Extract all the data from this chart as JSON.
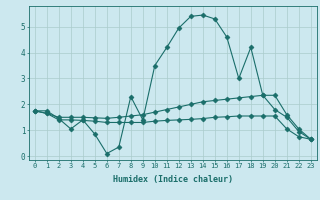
{
  "xlabel": "Humidex (Indice chaleur)",
  "bg_color": "#cce8ef",
  "grid_color": "#aacccc",
  "line_color": "#1a6e6a",
  "xlim": [
    -0.5,
    23.5
  ],
  "ylim": [
    -0.15,
    5.8
  ],
  "xticks": [
    0,
    1,
    2,
    3,
    4,
    5,
    6,
    7,
    8,
    9,
    10,
    11,
    12,
    13,
    14,
    15,
    16,
    17,
    18,
    19,
    20,
    21,
    22,
    23
  ],
  "yticks": [
    0,
    1,
    2,
    3,
    4,
    5
  ],
  "series": [
    {
      "x": [
        0,
        1,
        2,
        3,
        4,
        5,
        6,
        7,
        8,
        9,
        10,
        11,
        12,
        13,
        14,
        15,
        16,
        17,
        18,
        19,
        20,
        21,
        22,
        23
      ],
      "y": [
        1.75,
        1.75,
        1.45,
        1.05,
        1.4,
        0.85,
        0.1,
        0.35,
        2.3,
        1.4,
        3.5,
        4.2,
        4.95,
        5.4,
        5.45,
        5.3,
        4.6,
        3.0,
        4.2,
        2.35,
        1.8,
        1.5,
        0.95,
        0.65
      ],
      "marker": "D",
      "markersize": 2.5
    },
    {
      "x": [
        0,
        1,
        2,
        3,
        4,
        5,
        6,
        7,
        8,
        9,
        10,
        11,
        12,
        13,
        14,
        15,
        16,
        17,
        18,
        19,
        20,
        21,
        22,
        23
      ],
      "y": [
        1.75,
        1.65,
        1.5,
        1.5,
        1.5,
        1.48,
        1.46,
        1.5,
        1.55,
        1.6,
        1.7,
        1.8,
        1.9,
        2.0,
        2.1,
        2.15,
        2.2,
        2.25,
        2.3,
        2.35,
        2.35,
        1.6,
        1.05,
        0.65
      ],
      "marker": "D",
      "markersize": 2.5
    },
    {
      "x": [
        0,
        1,
        2,
        3,
        4,
        5,
        6,
        7,
        8,
        9,
        10,
        11,
        12,
        13,
        14,
        15,
        16,
        17,
        18,
        19,
        20,
        21,
        22,
        23
      ],
      "y": [
        1.75,
        1.65,
        1.4,
        1.4,
        1.38,
        1.35,
        1.3,
        1.3,
        1.3,
        1.3,
        1.35,
        1.38,
        1.4,
        1.42,
        1.45,
        1.5,
        1.52,
        1.55,
        1.55,
        1.55,
        1.55,
        1.05,
        0.75,
        0.65
      ],
      "marker": "D",
      "markersize": 2.5
    }
  ]
}
